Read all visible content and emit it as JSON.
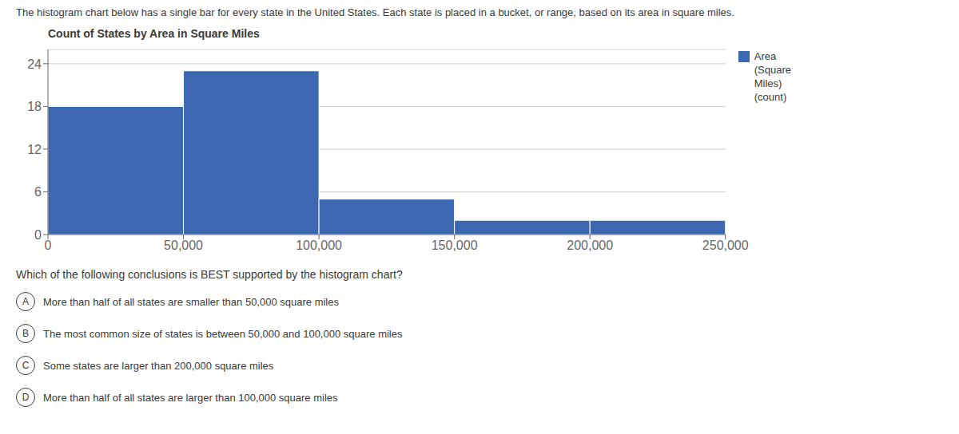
{
  "chart_data": {
    "type": "histogram",
    "title": "Count of States by Area in Square Miles",
    "bins": [
      0,
      50000,
      100000,
      150000,
      200000,
      250000
    ],
    "values": [
      18,
      23,
      5,
      2,
      2
    ],
    "color": "#3B68B0",
    "xlim": [
      0,
      250000
    ],
    "xticks": [
      0,
      {
        "value": 50000,
        "label": "50,000"
      },
      {
        "value": 100000,
        "label": "100,000"
      },
      {
        "value": 150000,
        "label": "150,000"
      },
      {
        "value": 200000,
        "label": "200,000"
      },
      {
        "value": 250000,
        "label": "250,000"
      }
    ],
    "ylim": [
      0,
      26
    ],
    "yticks": [
      0,
      6,
      12,
      18,
      24
    ],
    "grid": true,
    "legend": "right",
    "series": [
      {
        "name": "Area\n(Square\nMiles)\n(count)",
        "color": "#3B68B0",
        "values": [
          18,
          23,
          5,
          2,
          2
        ]
      }
    ],
    "annotations": [
      {
        "text": "The histogram chart below has a single bar for every state in the United States. Each state is placed in a bucket, or range, based on its area in square miles."
      },
      {
        "text": "Which of the following conclusions is BEST supported by the histogram chart?"
      },
      {
        "label": "A",
        "text": "More than half of all states are smaller than 50,000 square miles"
      },
      {
        "label": "B",
        "text": "The most common size of states is between 50,000 and 100,000 square miles"
      },
      {
        "label": "C",
        "text": "Some states are larger than 200,000 square miles"
      },
      {
        "label": "D",
        "text": "More than half of all states are larger than 100,000 square miles"
      }
    ]
  }
}
